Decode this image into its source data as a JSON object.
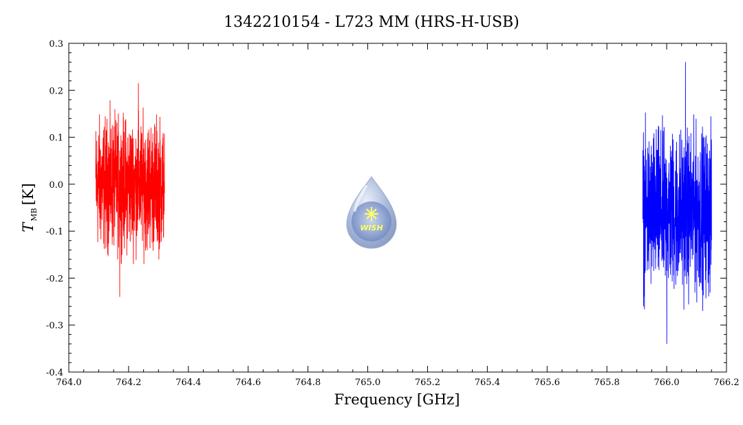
{
  "chart_data": {
    "type": "line",
    "title": "1342210154 - L723 MM (HRS-H-USB)",
    "xlabel": "Frequency [GHz]",
    "ylabel_main": "T",
    "ylabel_sub": "MB",
    "ylabel_unit": "[K]",
    "xlim": [
      764.0,
      766.2
    ],
    "ylim": [
      -0.4,
      0.3
    ],
    "x_ticks": [
      764.0,
      764.2,
      764.4,
      764.6,
      764.8,
      765.0,
      765.2,
      765.4,
      765.6,
      765.8,
      766.0,
      766.2
    ],
    "x_tick_labels": [
      "764.0",
      "764.2",
      "764.4",
      "764.6",
      "764.8",
      "765.0",
      "765.2",
      "765.4",
      "765.6",
      "765.8",
      "766.0",
      "766.2"
    ],
    "y_ticks": [
      -0.4,
      -0.3,
      -0.2,
      -0.1,
      0.0,
      0.1,
      0.2,
      0.3
    ],
    "y_tick_labels": [
      "-0.4",
      "-0.3",
      "-0.2",
      "-0.1",
      "0.0",
      "0.1",
      "0.2",
      "0.3"
    ],
    "grid": false,
    "logo_text": "WISH",
    "series": [
      {
        "color": "#ff0000",
        "x_range": [
          764.09,
          764.32
        ],
        "mean": 0.0,
        "typical_min": -0.17,
        "typical_max": 0.21,
        "extreme_min": -0.24,
        "extreme_max": 0.215
      },
      {
        "color": "#0000ff",
        "x_range": [
          765.92,
          766.15
        ],
        "mean": -0.06,
        "typical_min": -0.3,
        "typical_max": 0.17,
        "extreme_min": -0.34,
        "extreme_max": 0.26
      }
    ]
  }
}
